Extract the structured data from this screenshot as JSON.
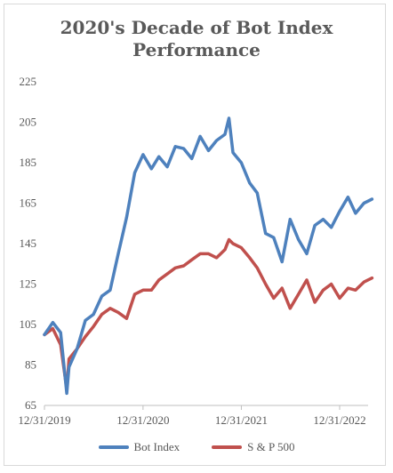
{
  "chart_data": {
    "type": "line",
    "title_line1": "2020's Decade of Bot Index",
    "title_line2": "Performance",
    "xlabel": "",
    "ylabel": "",
    "ylim": [
      65,
      225
    ],
    "y_ticks": [
      225,
      205,
      185,
      165,
      145,
      125,
      105,
      85,
      65
    ],
    "x_ticks": [
      "12/31/2019",
      "12/31/2020",
      "12/31/2021",
      "12/31/2022"
    ],
    "grid": false,
    "legend_position": "bottom",
    "x": [
      "2019-12-31",
      "2020-01-31",
      "2020-02-29",
      "2020-03-23",
      "2020-03-31",
      "2020-04-30",
      "2020-05-31",
      "2020-06-30",
      "2020-07-31",
      "2020-08-31",
      "2020-09-30",
      "2020-10-31",
      "2020-11-30",
      "2020-12-31",
      "2021-01-31",
      "2021-02-28",
      "2021-03-31",
      "2021-04-30",
      "2021-05-31",
      "2021-06-30",
      "2021-07-31",
      "2021-08-31",
      "2021-09-30",
      "2021-10-31",
      "2021-11-15",
      "2021-11-30",
      "2021-12-31",
      "2022-01-31",
      "2022-02-28",
      "2022-03-31",
      "2022-04-30",
      "2022-05-31",
      "2022-06-30",
      "2022-07-31",
      "2022-08-31",
      "2022-09-30",
      "2022-10-31",
      "2022-11-30",
      "2022-12-31",
      "2023-01-31",
      "2023-02-28",
      "2023-03-31",
      "2023-04-30"
    ],
    "series": [
      {
        "name": "Bot Index",
        "color": "#4e81bd",
        "values": [
          100,
          106,
          101,
          71,
          84,
          93,
          107,
          110,
          119,
          122,
          140,
          158,
          180,
          189,
          182,
          188,
          183,
          193,
          192,
          187,
          198,
          191,
          196,
          199,
          207,
          190,
          185,
          175,
          170,
          150,
          148,
          136,
          157,
          147,
          140,
          154,
          157,
          153,
          161,
          168,
          160,
          165,
          167
        ]
      },
      {
        "name": "S & P 500",
        "color": "#c0504d",
        "values": [
          100,
          103,
          95,
          73,
          88,
          93,
          99,
          104,
          110,
          113,
          111,
          108,
          120,
          122,
          122,
          127,
          130,
          133,
          134,
          137,
          140,
          140,
          138,
          142,
          147,
          145,
          143,
          138,
          133,
          125,
          118,
          123,
          113,
          120,
          127,
          116,
          122,
          125,
          118,
          123,
          122,
          126,
          128
        ]
      }
    ]
  }
}
